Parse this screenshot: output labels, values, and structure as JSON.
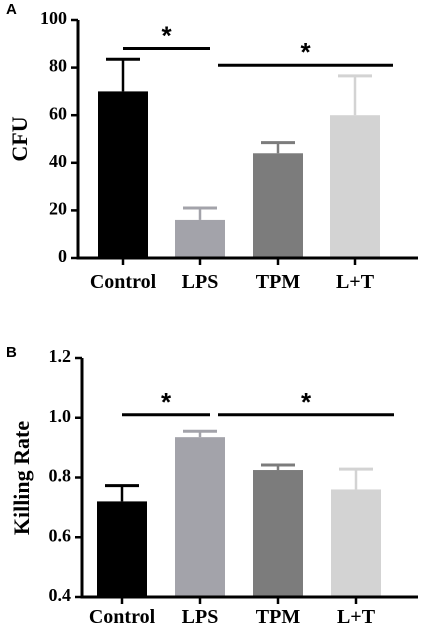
{
  "chart_data": [
    {
      "type": "bar",
      "panel": "A",
      "categories": [
        "Control",
        "LPS",
        "TPM",
        "L+T"
      ],
      "values": [
        70,
        16,
        44,
        60
      ],
      "errors": [
        13.5,
        5,
        4.5,
        16.5
      ],
      "colors": [
        "#000000",
        "#a3a3aa",
        "#7c7c7c",
        "#d3d3d3"
      ],
      "ylabel": "CFU",
      "ylim": [
        0,
        100
      ],
      "yticks": [
        0,
        20,
        40,
        60,
        80,
        100
      ],
      "ytick_labels": [
        "0",
        "20",
        "40",
        "60",
        "80",
        "100"
      ],
      "significance": [
        {
          "from": 0,
          "to": 1,
          "label": "*",
          "y": 88
        },
        {
          "from": 1,
          "to": 3,
          "label": "*",
          "y": 81
        }
      ]
    },
    {
      "type": "bar",
      "panel": "B",
      "categories": [
        "Control",
        "LPS",
        "TPM",
        "L+T"
      ],
      "values": [
        0.72,
        0.935,
        0.825,
        0.76
      ],
      "errors": [
        0.053,
        0.02,
        0.017,
        0.068
      ],
      "colors": [
        "#000000",
        "#a3a3aa",
        "#7c7c7c",
        "#d3d3d3"
      ],
      "ylabel": "Killing Rate",
      "ylim": [
        0.4,
        1.2
      ],
      "yticks": [
        0.4,
        0.6,
        0.8,
        1.0,
        1.2
      ],
      "ytick_labels": [
        "0.4",
        "0.6",
        "0.8",
        "1.0",
        "1.2"
      ],
      "significance": [
        {
          "from": 0,
          "to": 1,
          "label": "*",
          "y": 1.01
        },
        {
          "from": 1,
          "to": 3,
          "label": "*",
          "y": 1.01
        }
      ]
    }
  ]
}
